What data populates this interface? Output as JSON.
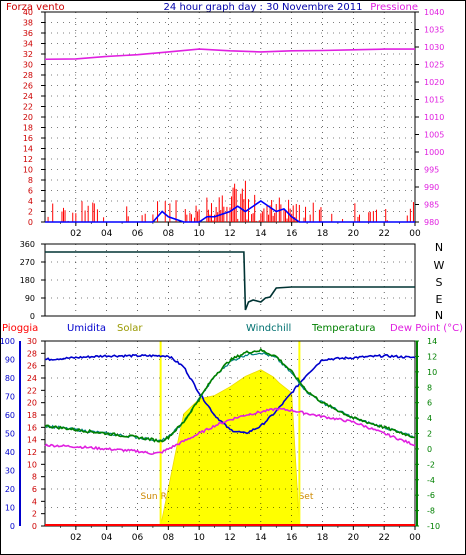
{
  "chart_data": [
    {
      "type": "line",
      "panel": "wind-pressure",
      "title": "24 hour graph day : 30 Novembre 2011",
      "series_labels": {
        "left": "Forza vento",
        "right": "Pressione"
      },
      "x_ticks": [
        "02",
        "04",
        "06",
        "08",
        "10",
        "12",
        "14",
        "16",
        "18",
        "20",
        "22",
        "00"
      ],
      "left_axis": {
        "ticks": [
          0,
          2,
          4,
          6,
          8,
          10,
          12,
          14,
          16,
          18,
          20,
          22,
          24,
          26,
          28,
          30,
          32,
          34,
          36,
          38,
          40
        ],
        "range": [
          0,
          40
        ]
      },
      "right_axis": {
        "ticks": [
          980,
          985,
          990,
          995,
          1000,
          1005,
          1010,
          1015,
          1020,
          1025,
          1030,
          1035,
          1040
        ],
        "range": [
          980,
          1040
        ]
      },
      "pressure": {
        "x": [
          0,
          2,
          4,
          6,
          8,
          10,
          12,
          14,
          16,
          18,
          20,
          22,
          24
        ],
        "y": [
          1026.5,
          1026.6,
          1027.3,
          1027.8,
          1028.6,
          1029.4,
          1028.9,
          1028.6,
          1028.9,
          1029.0,
          1029.2,
          1029.4,
          1029.4
        ],
        "color": "#e020e0"
      },
      "wind_gust_color": "#ff0000",
      "wind_avg_color": "#0000ff",
      "wind_avg": {
        "x": [
          0,
          1,
          2,
          3,
          4,
          5,
          6,
          7,
          7.3,
          7.6,
          8,
          9,
          10,
          10.5,
          11,
          11.5,
          12,
          12.5,
          13,
          13.5,
          14,
          14.5,
          15,
          15.5,
          16,
          16.5,
          17,
          20,
          24
        ],
        "y": [
          0,
          0,
          0,
          0,
          0,
          0,
          0,
          0,
          1,
          2,
          1,
          0,
          0,
          1,
          1,
          1.5,
          2,
          3,
          2,
          3,
          4,
          3,
          2,
          2.5,
          1,
          0,
          0,
          0,
          0
        ]
      }
    },
    {
      "type": "line",
      "panel": "wind-direction",
      "direction_labels": [
        "N",
        "W",
        "S",
        "E",
        "N"
      ],
      "y_ticks": [
        0,
        90,
        180,
        270,
        360
      ],
      "range": [
        0,
        360
      ],
      "series": {
        "x": [
          0,
          12.9,
          13.0,
          13.2,
          13.5,
          14,
          14.3,
          14.6,
          15,
          16,
          18,
          20,
          22,
          24
        ],
        "y": [
          320,
          320,
          30,
          70,
          80,
          70,
          90,
          95,
          140,
          145,
          145,
          145,
          145,
          145
        ],
        "color": "#003333"
      }
    },
    {
      "type": "line",
      "panel": "temperature-humidity-solar",
      "series_labels": [
        "Pioggia",
        "Umidita",
        "Solar",
        "Windchill",
        "Temperatura",
        "Dew Point (°C)"
      ],
      "label_colors": [
        "#ff0000",
        "#0000cc",
        "#999900",
        "#007070",
        "#008000",
        "#e020e0"
      ],
      "left_axis_pct": {
        "ticks": [
          0,
          10,
          20,
          30,
          40,
          50,
          60,
          70,
          80,
          90,
          100
        ]
      },
      "left_axis_rain": {
        "ticks": [
          0,
          2,
          4,
          6,
          8,
          10,
          12,
          14,
          16,
          18,
          20,
          22,
          24,
          26,
          28,
          30
        ]
      },
      "right_axis_temp": {
        "ticks": [
          -10,
          -8,
          -6,
          -4,
          -2,
          0,
          2,
          4,
          6,
          8,
          10,
          12,
          14
        ],
        "range": [
          -10,
          14
        ]
      },
      "annotations": [
        "Sun Rise",
        "Sun Set"
      ],
      "sunrise_hour": 7.5,
      "sunset_hour": 16.5,
      "humidity": {
        "x": [
          0,
          2,
          4,
          6,
          8,
          9,
          10,
          11,
          12,
          13,
          14,
          15,
          16,
          17,
          18,
          20,
          22,
          24
        ],
        "y": [
          90,
          91,
          92,
          92,
          92,
          86,
          72,
          60,
          52,
          50,
          54,
          62,
          72,
          82,
          90,
          91,
          92,
          91
        ]
      },
      "temperature": {
        "x": [
          0,
          2,
          4,
          6,
          7,
          7.5,
          8,
          9,
          10,
          11,
          12,
          13,
          14,
          15,
          16,
          17,
          18,
          19,
          20,
          22,
          24
        ],
        "y": [
          3.0,
          2.5,
          2.0,
          1.5,
          1.2,
          1.0,
          1.5,
          3.5,
          6.5,
          9.5,
          11.5,
          12.5,
          12.8,
          12.0,
          10.0,
          7.5,
          6.0,
          5.0,
          4.0,
          2.8,
          1.5
        ]
      },
      "windchill": {
        "x": [
          0,
          2,
          4,
          6,
          7,
          7.5,
          8,
          9,
          10,
          11,
          12,
          13,
          14,
          15,
          16,
          17,
          18,
          19,
          20,
          22,
          24
        ],
        "y": [
          3.0,
          2.5,
          2.0,
          1.5,
          1.2,
          1.0,
          1.5,
          3.5,
          6.5,
          9.4,
          11.3,
          12.2,
          12.5,
          11.8,
          9.8,
          7.4,
          6.0,
          5.0,
          4.0,
          2.8,
          1.5
        ]
      },
      "dew_point": {
        "x": [
          0,
          2,
          4,
          6,
          7,
          7.5,
          8,
          9,
          10,
          11,
          12,
          13,
          14,
          15,
          16,
          17,
          18,
          20,
          22,
          24
        ],
        "y": [
          0.5,
          0.3,
          0.0,
          -0.3,
          -0.6,
          -0.5,
          0.0,
          1.0,
          2.0,
          3.0,
          3.8,
          4.4,
          4.8,
          5.2,
          5.0,
          4.6,
          4.2,
          3.5,
          2.0,
          0.5
        ]
      },
      "solar": {
        "x": [
          7.5,
          8.0,
          8.5,
          9.0,
          10,
          11,
          12,
          13,
          14,
          14.8,
          15.2,
          16,
          16.5
        ],
        "y": [
          0,
          20,
          42,
          60,
          68,
          72,
          76,
          82,
          85,
          82,
          78,
          72,
          0
        ]
      },
      "rain": {
        "x": [
          0,
          24
        ],
        "y": [
          0,
          0
        ]
      }
    }
  ],
  "colors": {
    "frame": "#000000",
    "grid": "#000000",
    "title": "#0000aa",
    "wind_gust": "#ff0000",
    "wind_avg": "#0000ff",
    "pressure": "#e020e0",
    "temp": "#008000",
    "humidity": "#0000cc",
    "dew": "#e020e0",
    "windchill": "#008080",
    "solar": "#ffff00",
    "sun_label": "#cc8800",
    "rain": "#ff0000"
  }
}
